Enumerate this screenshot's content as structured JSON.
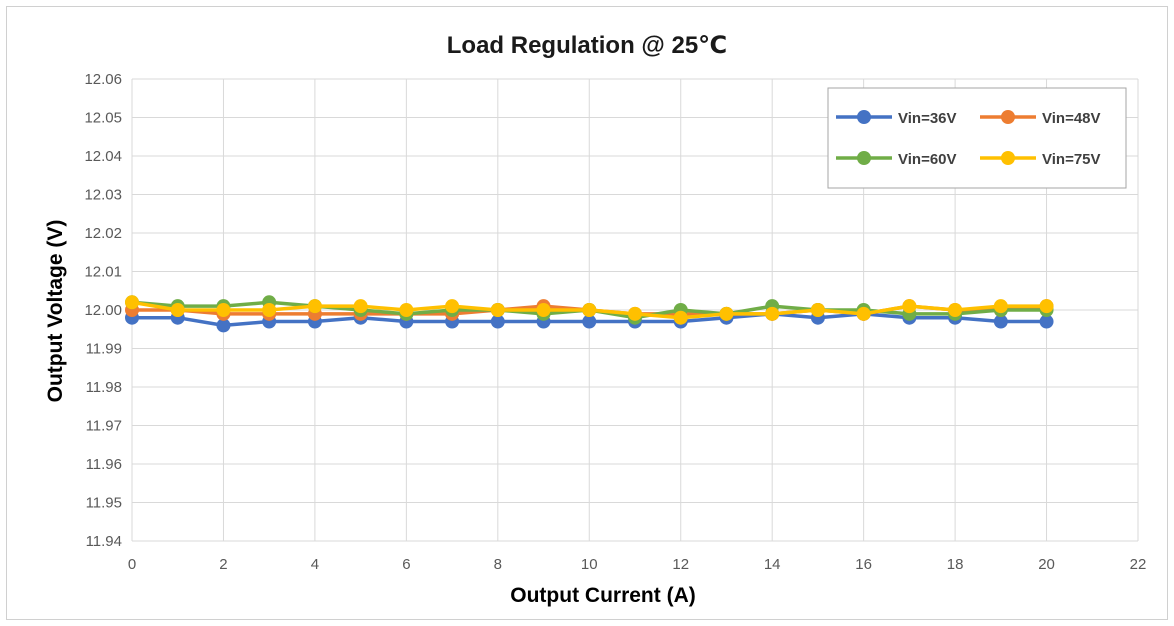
{
  "chart_data": {
    "type": "line",
    "title": "Load Regulation @ 25℃",
    "xlabel": "Output Current (A)",
    "ylabel": "Output Voltage (V)",
    "xlim": [
      0,
      22
    ],
    "ylim": [
      11.94,
      12.06
    ],
    "xticks": [
      0,
      2,
      4,
      6,
      8,
      10,
      12,
      14,
      16,
      18,
      20,
      22
    ],
    "yticks": [
      11.94,
      11.95,
      11.96,
      11.97,
      11.98,
      11.99,
      12.0,
      12.01,
      12.02,
      12.03,
      12.04,
      12.05,
      12.06
    ],
    "xtick_labels": [
      "0",
      "2",
      "4",
      "6",
      "8",
      "10",
      "12",
      "14",
      "16",
      "18",
      "20",
      "22"
    ],
    "ytick_labels": [
      "11.94",
      "11.95",
      "11.96",
      "11.97",
      "11.98",
      "11.99",
      "12.00",
      "12.01",
      "12.02",
      "12.03",
      "12.04",
      "12.05",
      "12.06"
    ],
    "grid": true,
    "legend_position": "top-right",
    "x": [
      0,
      1,
      2,
      3,
      4,
      5,
      6,
      7,
      8,
      9,
      10,
      11,
      12,
      13,
      14,
      15,
      16,
      17,
      18,
      19,
      20
    ],
    "series": [
      {
        "name": "Vin=36V",
        "color": "#4472C4",
        "values": [
          11.998,
          11.998,
          11.996,
          11.997,
          11.997,
          11.998,
          11.997,
          11.997,
          11.997,
          11.997,
          11.997,
          11.997,
          11.997,
          11.998,
          11.999,
          11.998,
          11.999,
          11.998,
          11.998,
          11.997,
          11.997
        ]
      },
      {
        "name": "Vin=48V",
        "color": "#ED7D31",
        "values": [
          12.0,
          12.0,
          11.999,
          11.999,
          11.999,
          11.999,
          11.999,
          11.999,
          12.0,
          12.001,
          12.0,
          11.999,
          11.999,
          11.999,
          11.999,
          12.0,
          11.999,
          12.001,
          12.0,
          12.0,
          12.001
        ]
      },
      {
        "name": "Vin=60V",
        "color": "#70AD47",
        "values": [
          12.002,
          12.001,
          12.001,
          12.002,
          12.001,
          12.0,
          11.999,
          12.0,
          12.0,
          11.999,
          12.0,
          11.998,
          12.0,
          11.999,
          12.001,
          12.0,
          12.0,
          11.999,
          11.999,
          12.0,
          12.0
        ]
      },
      {
        "name": "Vin=75V",
        "color": "#FFC000",
        "values": [
          12.002,
          12.0,
          12.0,
          12.0,
          12.001,
          12.001,
          12.0,
          12.001,
          12.0,
          12.0,
          12.0,
          11.999,
          11.998,
          11.999,
          11.999,
          12.0,
          11.999,
          12.001,
          12.0,
          12.001,
          12.001
        ]
      }
    ]
  }
}
